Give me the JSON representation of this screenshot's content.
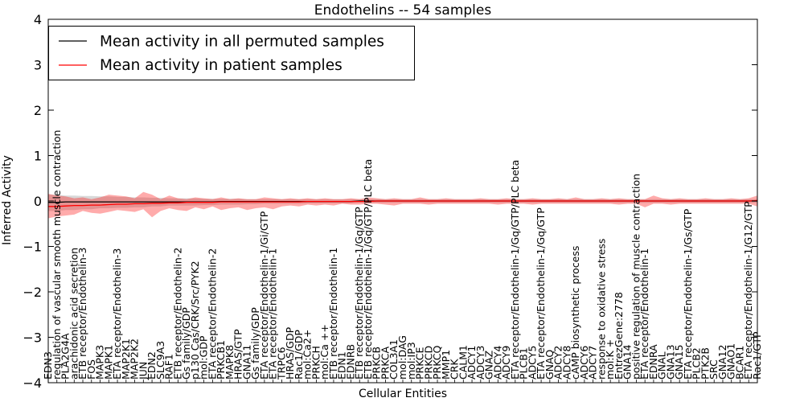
{
  "chart_data": {
    "type": "line",
    "title": "Endothelins -- 54 samples",
    "xlabel": "Cellular Entities",
    "ylabel": "Inferred Activity",
    "ylim": [
      -4,
      4
    ],
    "yticks": [
      "4",
      "3",
      "2",
      "1",
      "0",
      "−1",
      "−2",
      "−3",
      "−4"
    ],
    "ytick_values": [
      4,
      3,
      2,
      1,
      0,
      -1,
      -2,
      -3,
      -4
    ],
    "legend": {
      "position": "top-left",
      "entries": [
        {
          "label": "Mean activity in all permuted samples",
          "color": "#000000"
        },
        {
          "label": "Mean activity in patient samples",
          "color": "#ff0000"
        }
      ]
    },
    "categories": [
      "EDN3",
      "regulation of vascular smooth muscle contraction",
      "PLA2G4A",
      "arachidonic acid secretion",
      "ETB receptor/Endothelin-3",
      "FOS",
      "MAPK3",
      "MAPK1",
      "ETA receptor/Endothelin-3",
      "MAP2K1",
      "MAP2K2",
      "JUN",
      "EDN2",
      "SLC9A3",
      "RAF1",
      "ETB receptor/Endothelin-2",
      "Gs family/GDP",
      "p130 Cas/CRK/Src/PYK2",
      "mol:GDP",
      "ETA receptor/Endothelin-2",
      "PRKCB1",
      "MAPK8",
      "HRAS/GTP",
      "GNA11",
      "Gs family/GDP",
      "ETA receptor/Endothelin-1/Gi/GTP",
      "ETA receptor/Endothelin-1",
      "TRPC6",
      "HRAS/GDP",
      "Rac1/GDP",
      "mol:Ca2+",
      "PRKCH",
      "mol:Ca ++",
      "ETB receptor/Endothelin-1",
      "EDN1",
      "EDNRB",
      "ETB receptor/Endothelin-1/Gq/GTP",
      "ETB receptor/Endothelin-1/Gq/GTP/PLC beta",
      "PRKCB",
      "PRKCA",
      "COL3A1",
      "mol:DAG",
      "mol:IP3",
      "PRKCE",
      "PRKCD",
      "PRKCQ",
      "MMP1",
      "CRK",
      "CALM1",
      "ADCY1",
      "ADCY3",
      "GNAZ",
      "ADCY4",
      "ADCY9",
      "ETA receptor/Endothelin-1/Gq/GTP/PLC beta",
      "PLCB1",
      "ADCY5",
      "ETA receptor/Endothelin-1/Gq/GTP",
      "GNAQ",
      "ADCY2",
      "ADCY8",
      "cAMP biosynthetic process",
      "ADCY6",
      "ADCY7",
      "response to oxidative stress",
      "mol:K +",
      "EntrezGene:2778",
      "GNA14",
      "positive regulation of muscle contraction",
      "ETA receptor/Endothelin-1",
      "EDNRA",
      "GNAL",
      "GNA13",
      "GNA15",
      "ETA receptor/Endothelin-1/Gs/GTP",
      "PLCB2",
      "PTK2B",
      "SRC",
      "GNA12",
      "GNAO1",
      "BCAR1",
      "ETA receptor/Endothelin-1/G12/GTP",
      "Rac1/GTP"
    ],
    "series": [
      {
        "name": "Mean activity in all permuted samples",
        "color": "#000000",
        "values": [
          -0.03,
          -0.03,
          -0.02,
          -0.02,
          -0.02,
          -0.02,
          -0.02,
          -0.02,
          -0.02,
          -0.02,
          -0.02,
          -0.02,
          -0.02,
          -0.02,
          -0.02,
          -0.02,
          -0.02,
          -0.02,
          -0.02,
          -0.02,
          -0.01,
          -0.01,
          -0.01,
          -0.01,
          -0.01,
          -0.01,
          -0.01,
          -0.01,
          -0.01,
          -0.01,
          -0.01,
          -0.01,
          -0.01,
          -0.01,
          -0.01,
          -0.01,
          0,
          0,
          0,
          0,
          0,
          0,
          0,
          0,
          0,
          0,
          0,
          0,
          0,
          0,
          0,
          0,
          0,
          0,
          0,
          0,
          0,
          0,
          0,
          0,
          0,
          0,
          0,
          0,
          0,
          0,
          0,
          0,
          0,
          0,
          0,
          0,
          0,
          0,
          0,
          0,
          0,
          0,
          0,
          0,
          0,
          0,
          0
        ],
        "band_low": [
          -0.22,
          -0.22,
          -0.2,
          -0.2,
          -0.18,
          -0.18,
          -0.16,
          -0.16,
          -0.15,
          -0.15,
          -0.14,
          -0.14,
          -0.12,
          -0.12,
          -0.1,
          -0.1,
          -0.1,
          -0.1,
          -0.09,
          -0.09,
          -0.08,
          -0.08,
          -0.08,
          -0.07,
          -0.07,
          -0.06,
          -0.06,
          -0.06,
          -0.06,
          -0.06,
          -0.05,
          -0.05,
          -0.05,
          -0.05,
          -0.05,
          -0.05,
          -0.04,
          -0.04,
          -0.04,
          -0.04,
          -0.04,
          -0.04,
          -0.04,
          -0.04,
          -0.04,
          -0.04,
          -0.04,
          -0.04,
          -0.04,
          -0.04,
          -0.04,
          -0.04,
          -0.04,
          -0.04,
          -0.04,
          -0.04,
          -0.04,
          -0.04,
          -0.04,
          -0.04,
          -0.04,
          -0.04,
          -0.04,
          -0.04,
          -0.04,
          -0.04,
          -0.04,
          -0.04,
          -0.04,
          -0.04,
          -0.04,
          -0.04,
          -0.04,
          -0.04,
          -0.04,
          -0.04,
          -0.04,
          -0.04,
          -0.04,
          -0.04,
          -0.04,
          -0.04,
          -0.04
        ],
        "band_high": [
          0.14,
          0.14,
          0.12,
          0.12,
          0.11,
          0.11,
          0.1,
          0.1,
          0.09,
          0.09,
          0.08,
          0.08,
          0.07,
          0.07,
          0.06,
          0.06,
          0.06,
          0.06,
          0.05,
          0.05,
          0.05,
          0.05,
          0.05,
          0.04,
          0.04,
          0.04,
          0.04,
          0.04,
          0.04,
          0.04,
          0.04,
          0.04,
          0.04,
          0.04,
          0.04,
          0.04,
          0.04,
          0.04,
          0.04,
          0.04,
          0.04,
          0.04,
          0.04,
          0.04,
          0.04,
          0.04,
          0.04,
          0.04,
          0.04,
          0.04,
          0.04,
          0.04,
          0.04,
          0.04,
          0.04,
          0.04,
          0.04,
          0.04,
          0.04,
          0.04,
          0.04,
          0.04,
          0.04,
          0.04,
          0.04,
          0.04,
          0.04,
          0.04,
          0.04,
          0.04,
          0.04,
          0.04,
          0.04,
          0.04,
          0.04,
          0.04,
          0.04,
          0.04,
          0.04,
          0.04,
          0.04,
          0.04,
          0.04
        ]
      },
      {
        "name": "Mean activity in patient samples",
        "color": "#ff0000",
        "values": [
          -0.12,
          -0.12,
          -0.11,
          -0.1,
          -0.1,
          -0.09,
          -0.09,
          -0.08,
          -0.07,
          -0.07,
          -0.06,
          -0.06,
          -0.05,
          -0.05,
          -0.04,
          -0.04,
          -0.03,
          -0.03,
          -0.03,
          -0.03,
          -0.02,
          -0.02,
          -0.02,
          -0.02,
          -0.02,
          -0.02,
          -0.02,
          -0.02,
          -0.02,
          -0.02,
          -0.01,
          -0.01,
          -0.01,
          -0.01,
          -0.01,
          -0.01,
          -0.01,
          -0.01,
          0,
          0,
          0,
          0,
          0,
          0,
          0,
          0,
          0,
          0,
          0,
          0,
          0,
          0,
          0,
          0,
          0,
          0,
          0,
          0,
          0,
          0,
          0,
          0,
          0,
          0,
          0,
          0,
          0,
          0,
          0,
          0,
          0,
          0,
          0,
          0,
          0,
          0,
          0,
          0,
          0,
          0,
          0,
          0,
          0.01
        ],
        "band_low": [
          -0.38,
          -0.34,
          -0.32,
          -0.3,
          -0.22,
          -0.26,
          -0.28,
          -0.24,
          -0.2,
          -0.22,
          -0.24,
          -0.18,
          -0.36,
          -0.22,
          -0.16,
          -0.2,
          -0.22,
          -0.14,
          -0.18,
          -0.12,
          -0.2,
          -0.16,
          -0.14,
          -0.2,
          -0.16,
          -0.14,
          -0.18,
          -0.12,
          -0.1,
          -0.12,
          -0.08,
          -0.1,
          -0.08,
          -0.1,
          -0.06,
          -0.08,
          -0.08,
          -0.06,
          -0.06,
          -0.08,
          -0.1,
          -0.06,
          -0.06,
          -0.06,
          -0.08,
          -0.06,
          -0.06,
          -0.06,
          -0.06,
          -0.06,
          -0.06,
          -0.06,
          -0.08,
          -0.06,
          -0.06,
          -0.06,
          -0.08,
          -0.06,
          -0.06,
          -0.06,
          -0.06,
          -0.06,
          -0.06,
          -0.06,
          -0.06,
          -0.06,
          -0.08,
          -0.06,
          -0.06,
          -0.14,
          -0.06,
          -0.06,
          -0.08,
          -0.06,
          -0.06,
          -0.06,
          -0.06,
          -0.06,
          -0.06,
          -0.06,
          -0.06,
          -0.06,
          -0.12
        ],
        "band_high": [
          0.16,
          0.12,
          0.1,
          0.06,
          0.08,
          0.04,
          0.08,
          0.14,
          0.12,
          0.1,
          0.06,
          0.2,
          0.14,
          0.04,
          0.12,
          0.06,
          0.04,
          0.08,
          0.06,
          0.04,
          0.08,
          0.04,
          0.06,
          0.04,
          0.04,
          0.08,
          0.06,
          0.04,
          0.06,
          0.04,
          0.06,
          0.04,
          0.06,
          0.04,
          0.04,
          0.06,
          0.04,
          0.08,
          0.06,
          0.04,
          0.06,
          0.04,
          0.04,
          0.08,
          0.04,
          0.04,
          0.06,
          0.04,
          0.04,
          0.04,
          0.06,
          0.04,
          0.04,
          0.06,
          0.04,
          0.04,
          0.06,
          0.04,
          0.04,
          0.06,
          0.04,
          0.08,
          0.04,
          0.04,
          0.06,
          0.04,
          0.06,
          0.04,
          0.04,
          0.04,
          0.12,
          0.06,
          0.04,
          0.06,
          0.04,
          0.04,
          0.06,
          0.04,
          0.04,
          0.06,
          0.04,
          0.06,
          0.12
        ]
      }
    ]
  }
}
